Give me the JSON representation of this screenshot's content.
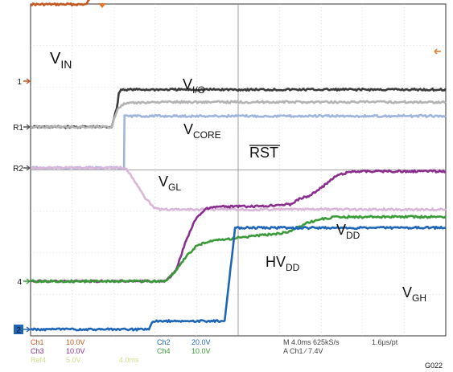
{
  "chart_data": {
    "type": "line",
    "title": "",
    "xlabel": "",
    "ylabel": "",
    "grid": true,
    "x_divisions": 10,
    "y_divisions": 8,
    "time_per_div_ms": 4.0,
    "xlim_ms": [
      0,
      40
    ],
    "series": [
      {
        "name": "V_IN",
        "label_main": "V",
        "label_sub": "IN",
        "ground_marker": "1",
        "color": "#c4571f",
        "x": [
          0,
          5.4,
          5.8,
          6.1,
          6.5,
          7.5,
          9,
          11,
          14,
          17,
          20,
          26,
          33,
          40
        ],
        "y": [
          1.85,
          1.85,
          2.05,
          2.45,
          2.65,
          2.85,
          3.05,
          3.2,
          3.3,
          3.35,
          3.37,
          3.4,
          3.4,
          3.4
        ]
      },
      {
        "name": "V_I/O",
        "label_main": "V",
        "label_sub": "I/O",
        "ground_marker": "R1",
        "color": "#3a3a3a",
        "x": [
          0,
          7.8,
          8.3,
          8.5,
          8.7,
          40
        ],
        "y": [
          0,
          0,
          0.45,
          0.8,
          0.9,
          0.9
        ]
      },
      {
        "name": "V_CORE",
        "label_main": "V",
        "label_sub": "CORE",
        "ground_marker": "",
        "color": "#b3b3b3",
        "x": [
          0,
          7.8,
          8.4,
          9.0,
          10,
          12,
          40
        ],
        "y": [
          0,
          0,
          0.45,
          0.55,
          0.58,
          0.6,
          0.6
        ]
      },
      {
        "name": "RST",
        "label_main": "RST",
        "label_sub": "",
        "ground_marker": "R2",
        "color": "#a0b4dc",
        "x": [
          0,
          9.0,
          9.05,
          40
        ],
        "y": [
          0,
          0,
          1.25,
          1.25
        ]
      },
      {
        "name": "V_GL",
        "label_main": "V",
        "label_sub": "GL",
        "ground_marker": "",
        "color": "#d9b7d9",
        "x": [
          0,
          9.1,
          10,
          11,
          11.8,
          12.5,
          16,
          40
        ],
        "y": [
          0,
          0,
          -0.3,
          -0.7,
          -0.95,
          -1.0,
          -1.0,
          -1.0
        ]
      },
      {
        "name": "V_DD",
        "label_main": "V",
        "label_sub": "DD",
        "ground_marker": "",
        "color": "#8b2f8f",
        "x": [
          0,
          13,
          14,
          15,
          16,
          17,
          18,
          20,
          22,
          24,
          25,
          26,
          26.8,
          28,
          29.5,
          31,
          32,
          40
        ],
        "y": [
          0,
          0,
          0.25,
          1.0,
          1.55,
          1.75,
          1.8,
          1.8,
          1.8,
          1.85,
          1.85,
          2.0,
          2.05,
          2.25,
          2.55,
          2.65,
          2.65,
          2.65
        ]
      },
      {
        "name": "HV_DD",
        "label_main": "HV",
        "label_sub": "DD",
        "ground_marker": "4",
        "color": "#3a9a3a",
        "x": [
          0,
          13,
          14,
          15,
          16,
          17,
          18.5,
          20,
          22,
          24,
          25,
          26.5,
          28,
          29.5,
          31,
          40
        ],
        "y": [
          0,
          0,
          0.25,
          0.6,
          0.85,
          0.95,
          1.0,
          1.05,
          1.1,
          1.15,
          1.2,
          1.4,
          1.5,
          1.55,
          1.55,
          1.55
        ]
      },
      {
        "name": "V_GH",
        "label_main": "V",
        "label_sub": "GH",
        "ground_marker": "2",
        "color": "#1f66b8",
        "x": [
          0,
          11.4,
          11.8,
          18.7,
          19.7,
          39.9,
          40
        ],
        "y": [
          0,
          0,
          0.2,
          0.2,
          2.45,
          2.45,
          2.45
        ]
      }
    ],
    "readout": {
      "rows": [
        [
          {
            "text": "Ch1",
            "color": "#c4571f"
          },
          {
            "text": "10.0V",
            "color": "#c4571f"
          },
          {
            "text": "Ch2",
            "color": "#1f66b8"
          },
          {
            "text": "20.0V",
            "color": "#1f66b8"
          },
          {
            "text": "M 4.0ms 625kS/s",
            "color": "#444444"
          },
          {
            "text": "1.6µs/pt",
            "color": "#444444"
          }
        ],
        [
          {
            "text": "Ch3",
            "color": "#8b2f8f"
          },
          {
            "text": "10.0V",
            "color": "#8b2f8f"
          },
          {
            "text": "Ch4",
            "color": "#3a9a3a"
          },
          {
            "text": "10.0V",
            "color": "#3a9a3a"
          },
          {
            "text": "A  Ch1  ⁄  7.4V",
            "color": "#444444"
          }
        ],
        [
          {
            "text": "Ref4",
            "color": "#d3dc8c"
          },
          {
            "text": "5.0V",
            "color": "#d3dc8c"
          },
          {
            "text": "4.0ms",
            "color": "#d3dc8c"
          }
        ]
      ]
    },
    "figure_id": "G022"
  }
}
